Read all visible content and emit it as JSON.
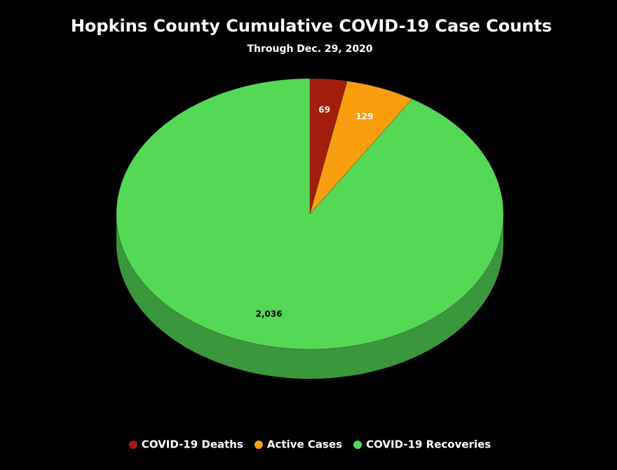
{
  "chart_data": {
    "type": "pie",
    "title": "Hopkins County Cumulative COVID-19 Case Counts",
    "subtitle": "Through Dec. 29, 2020",
    "categories": [
      "COVID-19 Deaths",
      "Active Cases",
      "COVID-19 Recoveries"
    ],
    "values": [
      69,
      129,
      2036
    ],
    "value_labels": [
      "69",
      "129",
      "2,036"
    ],
    "colors": [
      "#a31d0b",
      "#f89e0f",
      "#55d855"
    ],
    "legend": "bottom"
  }
}
